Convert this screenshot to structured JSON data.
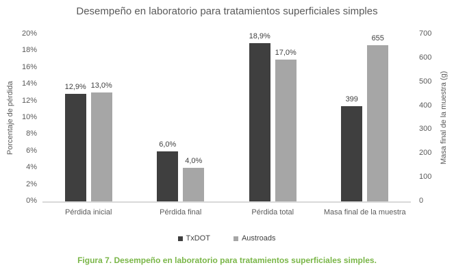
{
  "figure": {
    "caption": {
      "text": "Figura 7. Desempeño en laboratorio para tratamientos superficiales simples.",
      "color": "#7ab648"
    }
  },
  "chart_data": {
    "type": "bar",
    "title": "Desempeño en laboratorio para tratamientos superficiales simples",
    "categories": [
      "Pérdida inicial",
      "Pérdida final",
      "Pérdida total",
      "Masa final de la muestra"
    ],
    "series": [
      {
        "name": "TxDOT",
        "color": "#3f3f3f",
        "values": [
          12.9,
          6.0,
          18.9,
          399
        ],
        "labels": [
          "12,9%",
          "6,0%",
          "18,9%",
          "399"
        ]
      },
      {
        "name": "Austroads",
        "color": "#a6a6a6",
        "values": [
          13.0,
          4.0,
          17.0,
          655
        ],
        "labels": [
          "13,0%",
          "4,0%",
          "17,0%",
          "655"
        ]
      }
    ],
    "category_value_axis": [
      "percent",
      "percent",
      "percent",
      "mass"
    ],
    "left_axis": {
      "label": "Porcentaje de pérdida",
      "min": 0,
      "max": 20,
      "tick_step": 2,
      "unit": "percent",
      "ticks": [
        "0%",
        "2%",
        "4%",
        "6%",
        "8%",
        "10%",
        "12%",
        "14%",
        "16%",
        "18%",
        "20%"
      ]
    },
    "right_axis": {
      "label": "Masa final de la muestra (g)",
      "min": 0,
      "max": 700,
      "tick_step": 100,
      "unit": "grams",
      "ticks": [
        "0",
        "100",
        "200",
        "300",
        "400",
        "500",
        "600",
        "700"
      ]
    },
    "legend": {
      "position": "bottom",
      "entries": [
        {
          "label": "TxDOT",
          "color": "#3f3f3f"
        },
        {
          "label": "Austroads",
          "color": "#a6a6a6"
        }
      ]
    },
    "grid": false,
    "text_color": "#595959",
    "data_label_color": "#404040",
    "axis_line_color": "#d9d9d9"
  }
}
